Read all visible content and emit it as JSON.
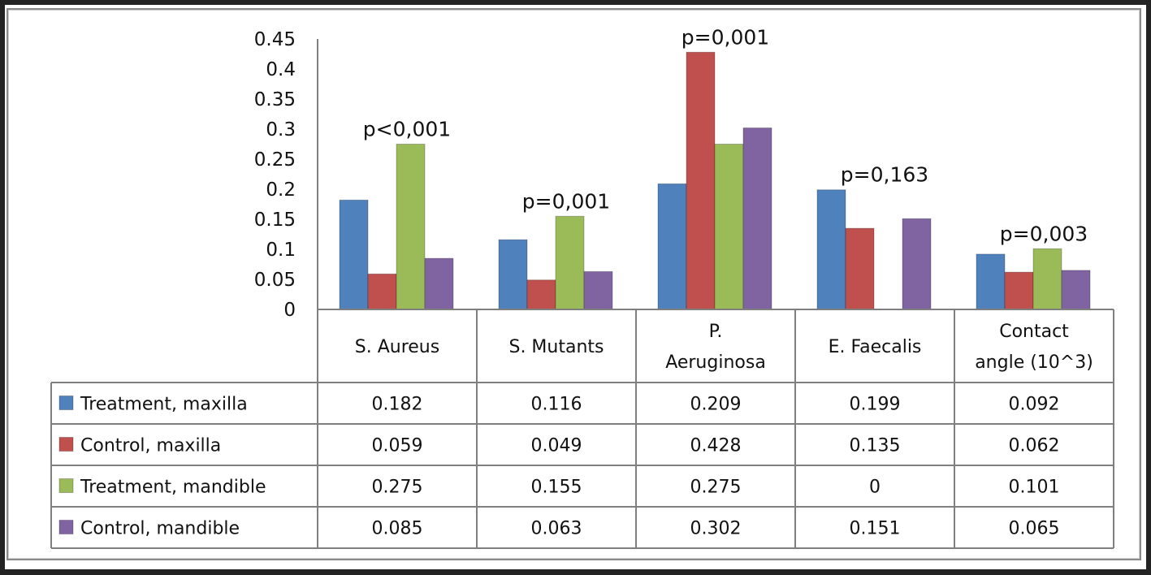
{
  "chart_data": {
    "type": "bar",
    "title": "",
    "xlabel": "",
    "ylabel": "",
    "ylim": [
      0,
      0.45
    ],
    "yticks": [
      "0",
      "0.05",
      "0.1",
      "0.15",
      "0.2",
      "0.25",
      "0.3",
      "0.35",
      "0.4",
      "0.45"
    ],
    "ytick_values": [
      0,
      0.05,
      0.1,
      0.15,
      0.2,
      0.25,
      0.3,
      0.35,
      0.4,
      0.45
    ],
    "grid": false,
    "legend_placement": "data-table-left",
    "categories": [
      "S. Aureus",
      "S. Mutants",
      "P. Aeruginosa",
      "E. Faecalis",
      "Contact angle (10^3)"
    ],
    "category_lines": [
      [
        "S. Aureus"
      ],
      [
        "S. Mutants"
      ],
      [
        "P.",
        "Aeruginosa"
      ],
      [
        "E. Faecalis"
      ],
      [
        "Contact",
        "angle (10^3)"
      ]
    ],
    "annotations": [
      "p<0,001",
      "p=0,001",
      "p=0,001",
      "p=0,163",
      "p=0,003"
    ],
    "series": [
      {
        "name": "Treatment, maxilla",
        "color": "#4F81BD",
        "values": [
          0.182,
          0.116,
          0.209,
          0.199,
          0.092
        ],
        "labels": [
          "0.182",
          "0.116",
          "0.209",
          "0.199",
          "0.092"
        ]
      },
      {
        "name": "Control, maxilla",
        "color": "#C0504D",
        "values": [
          0.059,
          0.049,
          0.428,
          0.135,
          0.062
        ],
        "labels": [
          "0.059",
          "0.049",
          "0.428",
          "0.135",
          "0.062"
        ]
      },
      {
        "name": "Treatment, mandible",
        "color": "#9BBB59",
        "values": [
          0.275,
          0.155,
          0.275,
          0,
          0.101
        ],
        "labels": [
          "0.275",
          "0.155",
          "0.275",
          "0",
          "0.101"
        ]
      },
      {
        "name": "Control, mandible",
        "color": "#8064A2",
        "values": [
          0.085,
          0.063,
          0.302,
          0.151,
          0.065
        ],
        "labels": [
          "0.085",
          "0.063",
          "0.302",
          "0.151",
          "0.065"
        ]
      }
    ]
  }
}
